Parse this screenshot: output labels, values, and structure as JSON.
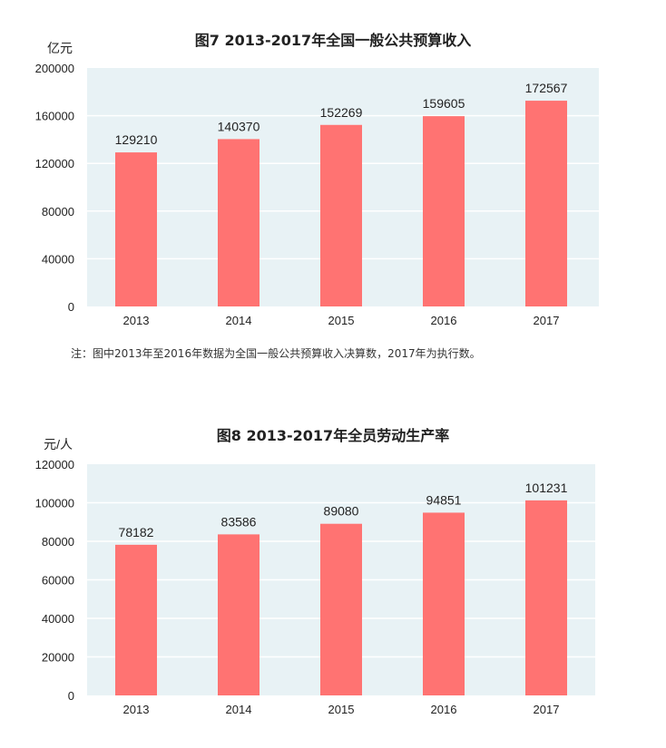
{
  "chart_data": [
    {
      "type": "bar",
      "title": "图7   2013-2017年全国一般公共预算收入",
      "ylabel": "亿元",
      "xlabel": "",
      "categories": [
        "2013",
        "2014",
        "2015",
        "2016",
        "2017"
      ],
      "values": [
        129210,
        140370,
        152269,
        159605,
        172567
      ],
      "ylim": [
        0,
        200000
      ],
      "yticks": [
        0,
        40000,
        80000,
        120000,
        160000,
        200000
      ],
      "grid": true,
      "note": "注：图中2013年至2016年数据为全国一般公共预算收入决算数，2017年为执行数。"
    },
    {
      "type": "bar",
      "title": "图8   2013-2017年全员劳动生产率",
      "ylabel": "元/人",
      "xlabel": "",
      "categories": [
        "2013",
        "2014",
        "2015",
        "2016",
        "2017"
      ],
      "values": [
        78182,
        83586,
        89080,
        94851,
        101231
      ],
      "ylim": [
        0,
        120000
      ],
      "yticks": [
        0,
        20000,
        40000,
        60000,
        80000,
        100000,
        120000
      ],
      "grid": true
    }
  ],
  "colors": {
    "bar": "#ff7372",
    "plot_bg": "#e8f2f5",
    "grid": "#ffffff"
  }
}
